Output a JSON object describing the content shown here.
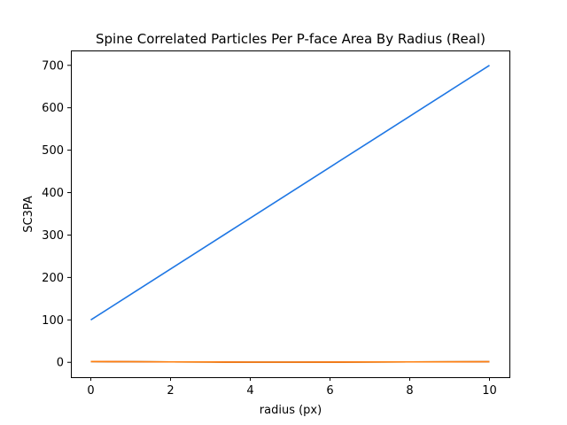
{
  "chart_data": {
    "type": "line",
    "title": "Spine Correlated Particles Per P-face Area By Radius (Real)",
    "xlabel": "radius (px)",
    "ylabel": "SC3PA",
    "xlim": [
      -0.5,
      10.5
    ],
    "ylim": [
      -35,
      735
    ],
    "xticks": [
      0,
      2,
      4,
      6,
      8,
      10
    ],
    "yticks": [
      0,
      100,
      200,
      300,
      400,
      500,
      600,
      700
    ],
    "grid": false,
    "legend": "none",
    "series": [
      {
        "color": "#1f77e4",
        "x": [
          0,
          1,
          2,
          3,
          4,
          5,
          6,
          7,
          8,
          9,
          10
        ],
        "y": [
          100,
          160,
          220,
          280,
          340,
          400,
          460,
          520,
          580,
          640,
          700
        ]
      },
      {
        "color": "#2ca02c",
        "x": [
          0,
          1,
          2,
          3,
          4,
          5,
          6,
          7,
          8,
          9,
          10
        ],
        "y": [
          2,
          1.5,
          1,
          0.8,
          0.5,
          0.5,
          0.6,
          0.8,
          1,
          1.2,
          1.5
        ]
      },
      {
        "color": "#d62728",
        "x": [
          0,
          1,
          2,
          3,
          4,
          5,
          6,
          7,
          8,
          9,
          10
        ],
        "y": [
          2,
          1.5,
          1,
          0.8,
          0.5,
          0.5,
          0.6,
          0.8,
          1,
          1.2,
          1.5
        ]
      },
      {
        "color": "#ff7f0e",
        "x": [
          0,
          1,
          2,
          3,
          4,
          5,
          6,
          7,
          8,
          9,
          10
        ],
        "y": [
          2,
          1.5,
          1,
          0.8,
          0.5,
          0.5,
          0.6,
          0.8,
          1,
          1.2,
          1.5
        ]
      }
    ]
  }
}
